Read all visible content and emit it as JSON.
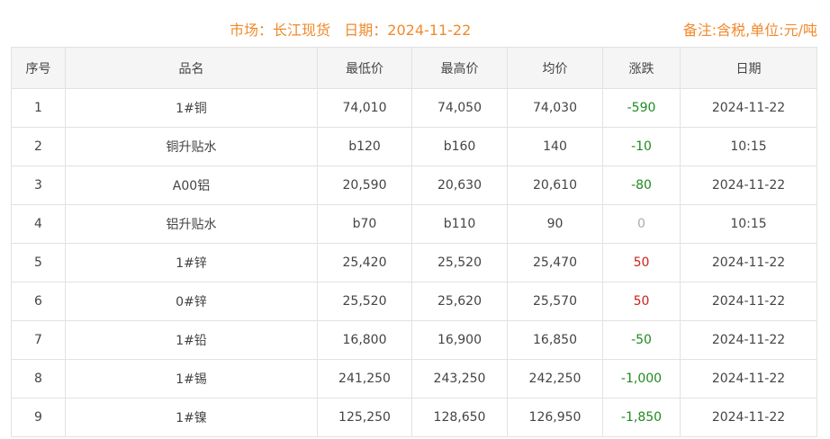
{
  "header": {
    "market_label": "市场：长江现货",
    "date_label": "日期：2024-11-22",
    "note": "备注:含税,单位:元/吨"
  },
  "columns": [
    "序号",
    "品名",
    "最低价",
    "最高价",
    "均价",
    "涨跌",
    "日期"
  ],
  "colors": {
    "accent": "#f08a2c",
    "down": "#1f8a1f",
    "up": "#d0201a",
    "flat": "#aaaaaa"
  },
  "rows": [
    [
      "1",
      "1#铜",
      "74,010",
      "74,050",
      "74,030",
      "-590",
      "2024-11-22"
    ],
    [
      "2",
      "铜升贴水",
      "b120",
      "b160",
      "140",
      "-10",
      "10:15"
    ],
    [
      "3",
      "A00铝",
      "20,590",
      "20,630",
      "20,610",
      "-80",
      "2024-11-22"
    ],
    [
      "4",
      "铝升贴水",
      "b70",
      "b110",
      "90",
      "0",
      "10:15"
    ],
    [
      "5",
      "1#锌",
      "25,420",
      "25,520",
      "25,470",
      "50",
      "2024-11-22"
    ],
    [
      "6",
      "0#锌",
      "25,520",
      "25,620",
      "25,570",
      "50",
      "2024-11-22"
    ],
    [
      "7",
      "1#铅",
      "16,800",
      "16,900",
      "16,850",
      "-50",
      "2024-11-22"
    ],
    [
      "8",
      "1#锡",
      "241,250",
      "243,250",
      "242,250",
      "-1,000",
      "2024-11-22"
    ],
    [
      "9",
      "1#镍",
      "125,250",
      "128,650",
      "126,950",
      "-1,850",
      "2024-11-22"
    ]
  ]
}
